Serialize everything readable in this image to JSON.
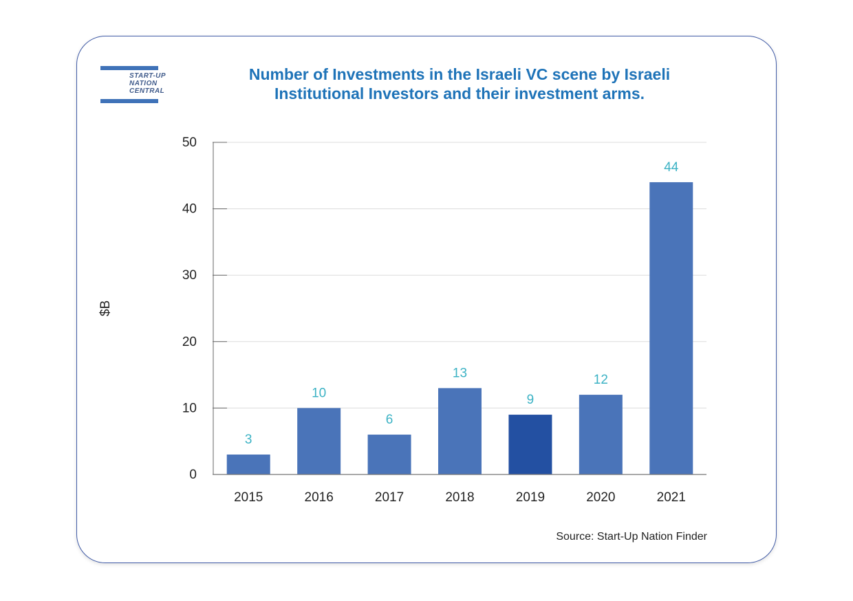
{
  "logo": {
    "lines": [
      "START-UP",
      "NATION",
      "CENTRAL"
    ]
  },
  "source": "Source: Start-Up Nation Finder",
  "colors": {
    "bar": "#4a74b9",
    "bar_highlight": "#2350a2",
    "data_label": "#3bb2c4",
    "title": "#1e73b8",
    "frame": "#3f5aa6"
  },
  "chart_data": {
    "type": "bar",
    "title_lines": [
      "Number of Investments in the Israeli VC scene by Israeli",
      "Institutional Investors and their investment arms."
    ],
    "xlabel": "",
    "ylabel": "$B",
    "categories": [
      "2015",
      "2016",
      "2017",
      "2018",
      "2019",
      "2020",
      "2021"
    ],
    "values": [
      3,
      10,
      6,
      13,
      9,
      12,
      44
    ],
    "data_labels": [
      "3",
      "10",
      "6",
      "13",
      "9",
      "12",
      "44"
    ],
    "highlight_category": "2019",
    "ylim": [
      0,
      50
    ],
    "yticks": [
      "0",
      "10",
      "20",
      "30",
      "40",
      "50"
    ],
    "grid": true,
    "legend": "none"
  }
}
